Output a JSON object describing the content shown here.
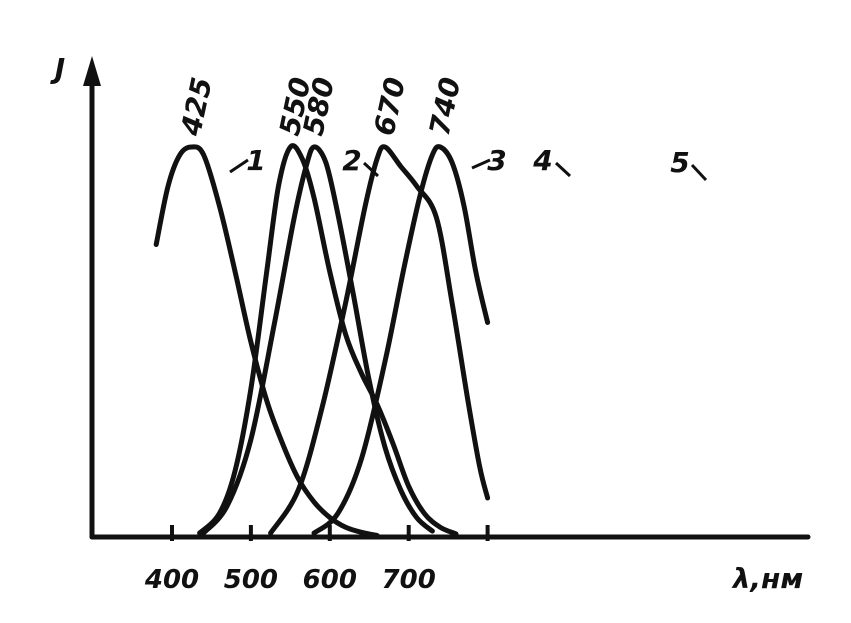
{
  "chart_data": {
    "type": "line",
    "ylabel": "J",
    "xlabel": "λ,нм",
    "xlim": [
      355,
      805
    ],
    "ylim": [
      0,
      1
    ],
    "x_ticks": [
      400,
      500,
      600,
      700,
      800
    ],
    "x_tick_labels": [
      "400",
      "500",
      "600",
      "700"
    ],
    "grid": false,
    "series": [
      {
        "name": "1",
        "peak_label": "425",
        "points": [
          [
            380,
            0.75
          ],
          [
            395,
            0.9
          ],
          [
            410,
            0.98
          ],
          [
            425,
            1.0
          ],
          [
            440,
            0.98
          ],
          [
            460,
            0.85
          ],
          [
            480,
            0.68
          ],
          [
            500,
            0.5
          ],
          [
            520,
            0.35
          ],
          [
            540,
            0.24
          ],
          [
            560,
            0.15
          ],
          [
            580,
            0.09
          ],
          [
            600,
            0.05
          ],
          [
            620,
            0.025
          ],
          [
            640,
            0.012
          ],
          [
            660,
            0.004
          ]
        ]
      },
      {
        "name": "2",
        "peak_label": "550",
        "points": [
          [
            435,
            0.01
          ],
          [
            460,
            0.06
          ],
          [
            480,
            0.17
          ],
          [
            500,
            0.38
          ],
          [
            520,
            0.68
          ],
          [
            535,
            0.9
          ],
          [
            550,
            1.0
          ],
          [
            565,
            0.97
          ],
          [
            580,
            0.87
          ],
          [
            600,
            0.68
          ],
          [
            620,
            0.52
          ],
          [
            640,
            0.42
          ],
          [
            660,
            0.34
          ],
          [
            680,
            0.24
          ],
          [
            700,
            0.13
          ],
          [
            720,
            0.06
          ],
          [
            740,
            0.025
          ],
          [
            760,
            0.008
          ]
        ]
      },
      {
        "name": "3",
        "peak_label": "580",
        "points": [
          [
            440,
            0.01
          ],
          [
            470,
            0.08
          ],
          [
            500,
            0.25
          ],
          [
            530,
            0.55
          ],
          [
            555,
            0.82
          ],
          [
            570,
            0.95
          ],
          [
            580,
            1.0
          ],
          [
            595,
            0.96
          ],
          [
            610,
            0.83
          ],
          [
            630,
            0.62
          ],
          [
            650,
            0.4
          ],
          [
            670,
            0.23
          ],
          [
            690,
            0.12
          ],
          [
            710,
            0.05
          ],
          [
            730,
            0.015
          ]
        ]
      },
      {
        "name": "4",
        "peak_label": "670",
        "points": [
          [
            525,
            0.01
          ],
          [
            560,
            0.12
          ],
          [
            590,
            0.33
          ],
          [
            620,
            0.6
          ],
          [
            645,
            0.85
          ],
          [
            660,
            0.97
          ],
          [
            670,
            1.0
          ],
          [
            690,
            0.95
          ],
          [
            710,
            0.9
          ],
          [
            735,
            0.82
          ],
          [
            755,
            0.6
          ],
          [
            775,
            0.35
          ],
          [
            790,
            0.18
          ],
          [
            800,
            0.1
          ]
        ]
      },
      {
        "name": "5",
        "peak_label": "740",
        "points": [
          [
            580,
            0.01
          ],
          [
            610,
            0.06
          ],
          [
            640,
            0.2
          ],
          [
            670,
            0.45
          ],
          [
            695,
            0.7
          ],
          [
            715,
            0.88
          ],
          [
            730,
            0.98
          ],
          [
            740,
            1.0
          ],
          [
            755,
            0.96
          ],
          [
            770,
            0.85
          ],
          [
            785,
            0.68
          ],
          [
            800,
            0.55
          ]
        ]
      }
    ]
  }
}
